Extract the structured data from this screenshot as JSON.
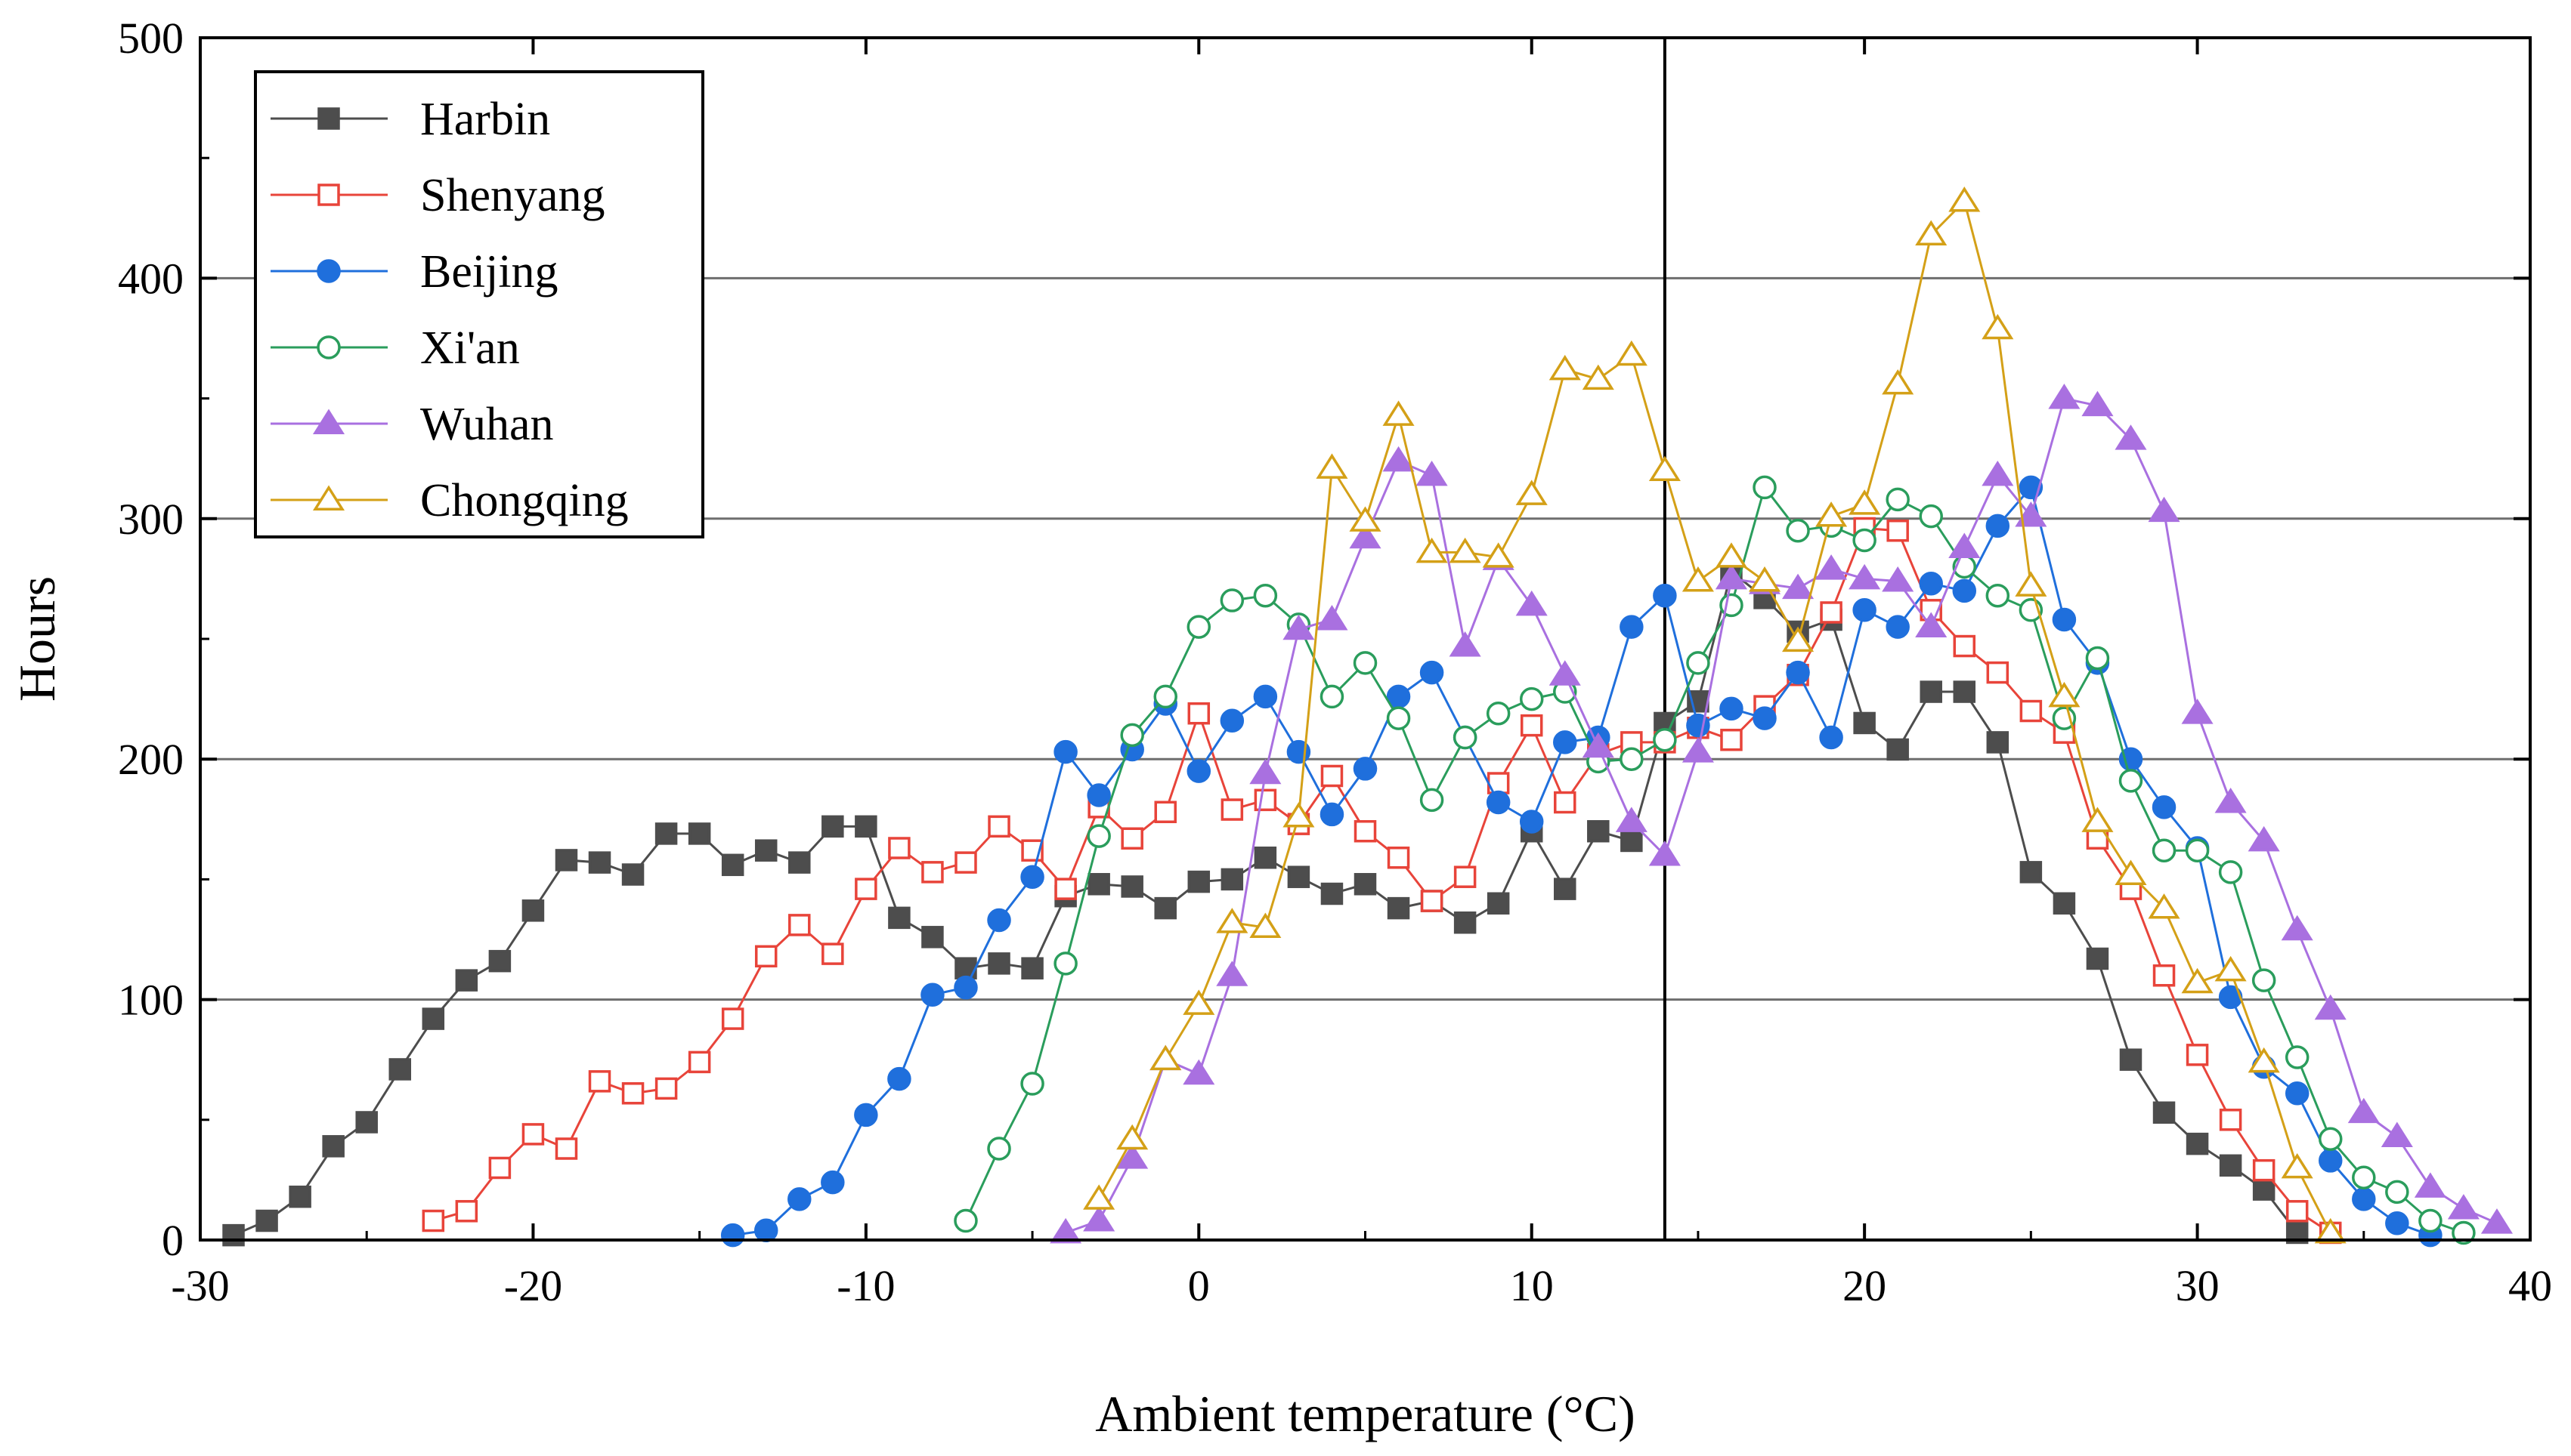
{
  "chart_data": {
    "type": "line",
    "title": "",
    "xlabel": "Ambient temperature (°C)",
    "ylabel": "Hours",
    "xlim": [
      -30,
      40
    ],
    "ylim": [
      0,
      500
    ],
    "xticks": [
      -30,
      -20,
      -10,
      0,
      10,
      20,
      30,
      40
    ],
    "yticks": [
      0,
      100,
      200,
      300,
      400,
      500
    ],
    "xtick_labels": [
      "-30",
      "-20",
      "-10",
      "0",
      "10",
      "20",
      "30",
      "40"
    ],
    "ytick_labels": [
      "0",
      "100",
      "200",
      "300",
      "400",
      "500"
    ],
    "grid": "horizontal",
    "vline_x": 14,
    "legend_position": "top-left",
    "series": [
      {
        "name": "Harbin",
        "color": "#4d4d4d",
        "marker": "square-filled",
        "x": [
          -29,
          -28,
          -27,
          -26,
          -25,
          -24,
          -23,
          -22,
          -21,
          -20,
          -19,
          -18,
          -17,
          -16,
          -15,
          -14,
          -13,
          -12,
          -11,
          -10,
          -9,
          -8,
          -7,
          -6,
          -5,
          -4,
          -3,
          -2,
          -1,
          0,
          1,
          2,
          3,
          4,
          5,
          6,
          7,
          8,
          9,
          10,
          11,
          12,
          13,
          14,
          15,
          16,
          17,
          18,
          19,
          20,
          21,
          22,
          23,
          24,
          25,
          26,
          27,
          28,
          29,
          30,
          31,
          32,
          33
        ],
        "y": [
          2,
          8,
          18,
          39,
          49,
          71,
          92,
          108,
          116,
          137,
          158,
          157,
          152,
          169,
          169,
          156,
          162,
          157,
          172,
          172,
          134,
          126,
          113,
          115,
          113,
          143,
          148,
          147,
          138,
          149,
          150,
          159,
          151,
          144,
          148,
          138,
          141,
          132,
          140,
          170,
          146,
          170,
          166,
          215,
          224,
          278,
          267,
          253,
          258,
          215,
          204,
          228,
          228,
          207,
          153,
          140,
          117,
          75,
          53,
          40,
          31,
          21,
          3
        ]
      },
      {
        "name": "Shenyang",
        "color": "#e8443a",
        "marker": "square-open",
        "x": [
          -23,
          -22,
          -21,
          -20,
          -19,
          -18,
          -17,
          -16,
          -15,
          -14,
          -13,
          -12,
          -11,
          -10,
          -9,
          -8,
          -7,
          -6,
          -5,
          -4,
          -3,
          -2,
          -1,
          0,
          1,
          2,
          3,
          4,
          5,
          6,
          7,
          8,
          9,
          10,
          11,
          12,
          13,
          14,
          15,
          16,
          17,
          18,
          19,
          20,
          21,
          22,
          23,
          24,
          25,
          26,
          27,
          28,
          29,
          30,
          31,
          32,
          33,
          34
        ],
        "y": [
          8,
          12,
          30,
          44,
          38,
          66,
          61,
          63,
          74,
          92,
          118,
          131,
          119,
          146,
          163,
          153,
          157,
          172,
          162,
          146,
          180,
          167,
          178,
          219,
          179,
          183,
          173,
          193,
          170,
          159,
          141,
          151,
          190,
          214,
          182,
          202,
          207,
          207,
          213,
          208,
          222,
          235,
          261,
          296,
          295,
          262,
          247,
          236,
          220,
          211,
          167,
          146,
          110,
          77,
          50,
          29,
          12,
          3
        ]
      },
      {
        "name": "Beijing",
        "color": "#1f6fdc",
        "marker": "circle-filled",
        "x": [
          -14,
          -13,
          -12,
          -11,
          -10,
          -9,
          -8,
          -7,
          -6,
          -5,
          -4,
          -3,
          -2,
          -1,
          0,
          1,
          2,
          3,
          4,
          5,
          6,
          7,
          8,
          9,
          10,
          11,
          12,
          13,
          14,
          15,
          16,
          17,
          18,
          19,
          20,
          21,
          22,
          23,
          24,
          25,
          26,
          27,
          28,
          29,
          30,
          31,
          32,
          33,
          34,
          35,
          36,
          37
        ],
        "y": [
          2,
          4,
          17,
          24,
          52,
          67,
          102,
          105,
          133,
          151,
          203,
          185,
          204,
          223,
          195,
          216,
          226,
          203,
          177,
          196,
          226,
          236,
          209,
          182,
          174,
          207,
          209,
          255,
          268,
          214,
          221,
          217,
          236,
          209,
          262,
          255,
          273,
          270,
          297,
          313,
          258,
          240,
          200,
          180,
          163,
          101,
          72,
          61,
          33,
          17,
          7,
          2
        ]
      },
      {
        "name": "Xi'an",
        "color": "#2a9d5c",
        "marker": "circle-open",
        "x": [
          -7,
          -6,
          -5,
          -4,
          -3,
          -2,
          -1,
          0,
          1,
          2,
          3,
          4,
          5,
          6,
          7,
          8,
          9,
          10,
          11,
          12,
          13,
          14,
          15,
          16,
          17,
          18,
          19,
          20,
          21,
          22,
          23,
          24,
          25,
          26,
          27,
          28,
          29,
          30,
          31,
          32,
          33,
          34,
          35,
          36,
          37,
          38
        ],
        "y": [
          8,
          38,
          65,
          115,
          168,
          210,
          226,
          255,
          266,
          268,
          256,
          226,
          240,
          217,
          183,
          209,
          219,
          225,
          228,
          199,
          200,
          208,
          240,
          264,
          313,
          295,
          297,
          291,
          308,
          301,
          280,
          268,
          262,
          217,
          242,
          191,
          162,
          162,
          153,
          108,
          76,
          42,
          26,
          20,
          8,
          3
        ]
      },
      {
        "name": "Wuhan",
        "color": "#a970e0",
        "marker": "triangle-filled",
        "x": [
          -4,
          -3,
          -2,
          -1,
          0,
          1,
          2,
          3,
          4,
          5,
          6,
          7,
          8,
          9,
          10,
          11,
          12,
          13,
          14,
          15,
          16,
          17,
          18,
          19,
          20,
          21,
          22,
          23,
          24,
          25,
          26,
          27,
          28,
          29,
          30,
          31,
          32,
          33,
          34,
          35,
          36,
          37,
          38,
          39
        ],
        "y": [
          3,
          8,
          34,
          75,
          69,
          110,
          194,
          254,
          258,
          292,
          324,
          318,
          247,
          283,
          264,
          235,
          205,
          174,
          160,
          203,
          275,
          273,
          271,
          279,
          275,
          274,
          255,
          288,
          318,
          301,
          350,
          347,
          333,
          303,
          219,
          182,
          166,
          129,
          96,
          53,
          43,
          22,
          13,
          7
        ]
      },
      {
        "name": "Chongqing",
        "color": "#d4a017",
        "marker": "triangle-open",
        "x": [
          -3,
          -2,
          -1,
          0,
          1,
          2,
          3,
          4,
          5,
          6,
          7,
          8,
          9,
          10,
          11,
          12,
          13,
          14,
          15,
          16,
          17,
          18,
          19,
          20,
          21,
          22,
          23,
          24,
          25,
          26,
          27,
          28,
          29,
          30,
          31,
          32,
          33,
          34
        ],
        "y": [
          17,
          42,
          75,
          98,
          132,
          130,
          176,
          321,
          299,
          343,
          286,
          286,
          284,
          310,
          362,
          358,
          368,
          320,
          274,
          284,
          274,
          249,
          301,
          306,
          356,
          418,
          432,
          379,
          272,
          226,
          174,
          152,
          138,
          107,
          112,
          74,
          30,
          3
        ]
      }
    ]
  }
}
